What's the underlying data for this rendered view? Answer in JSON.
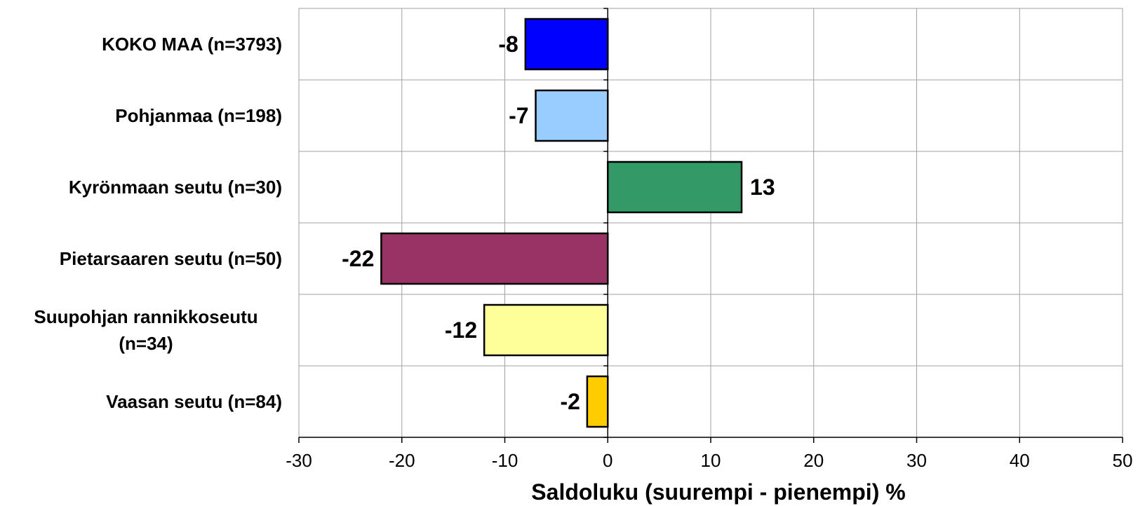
{
  "chart_data": {
    "type": "bar",
    "orientation": "horizontal",
    "categories": [
      "KOKO MAA (n=3793)",
      "Pohjanmaa (n=198)",
      "Kyrönmaan seutu (n=30)",
      "Pietarsaaren seutu (n=50)",
      "Suupohjan rannikkoseutu (n=34)",
      "Vaasan seutu (n=84)"
    ],
    "values": [
      -8,
      -7,
      13,
      -22,
      -12,
      -2
    ],
    "data_labels": [
      "-8",
      "-7",
      "13",
      "-22",
      "-12",
      "-2"
    ],
    "colors": [
      "#0000ff",
      "#99ccff",
      "#339966",
      "#993366",
      "#ffff99",
      "#ffcc00"
    ],
    "xlabel": "Saldoluku (suurempi - pienempi) %",
    "xlim": [
      -30,
      50
    ],
    "xticks": [
      -30,
      -20,
      -10,
      0,
      10,
      20,
      30,
      40,
      50
    ],
    "grid": true,
    "legend": "none"
  }
}
